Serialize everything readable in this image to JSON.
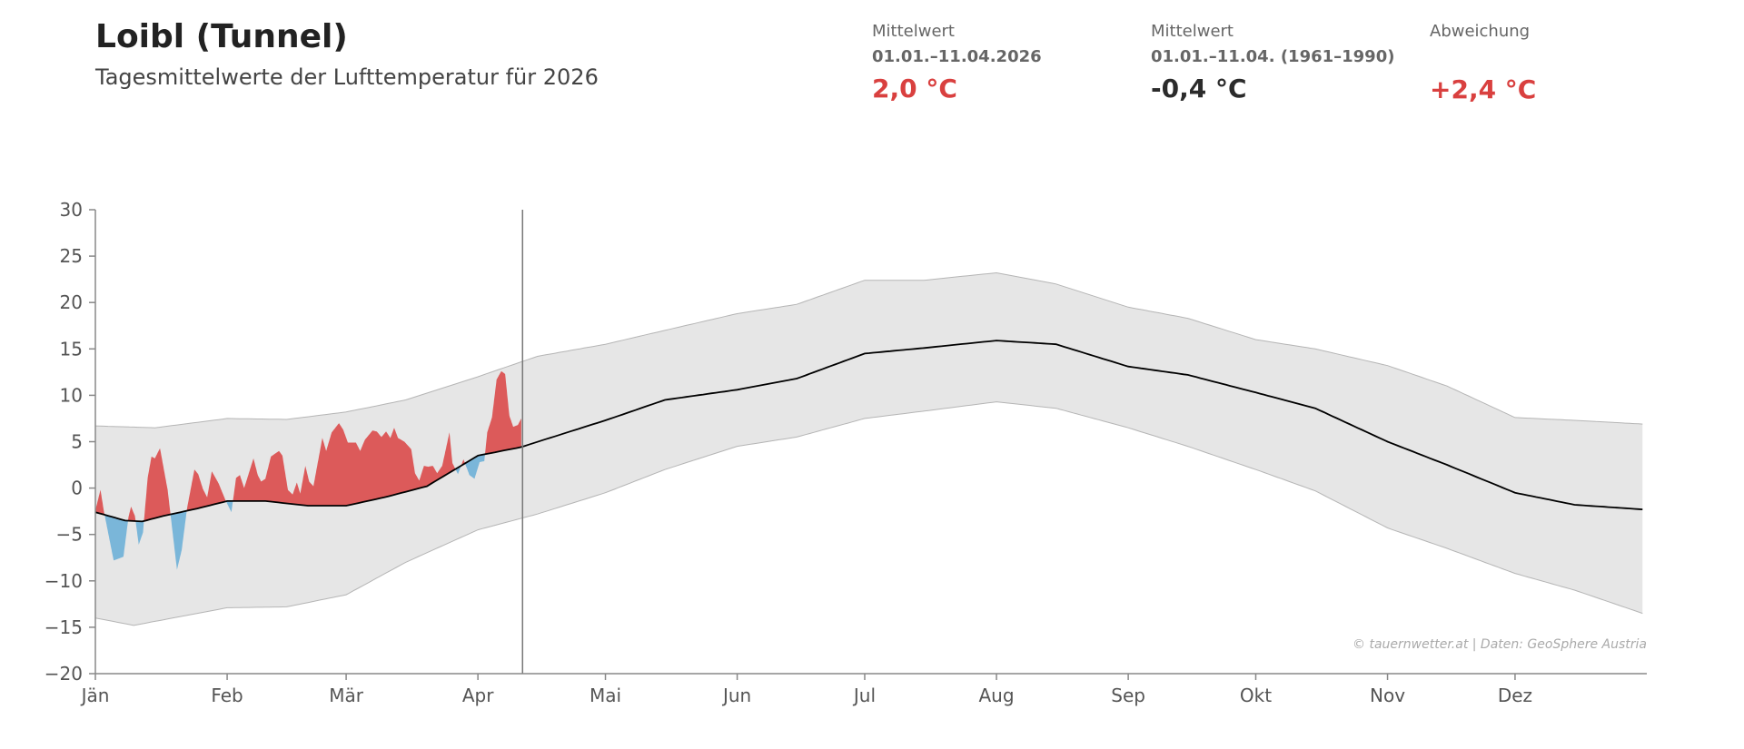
{
  "header": {
    "title": "Loibl (Tunnel)",
    "subtitle": "Tagesmittelwerte der Lufttemperatur für 2026"
  },
  "stats": [
    {
      "label": "Mittelwert",
      "period": "01.01.–11.04.2026",
      "value": "2,0 °C",
      "color": "#d9403f"
    },
    {
      "label": "Mittelwert",
      "period": "01.01.–11.04. (1961–1990)",
      "value": "-0,4 °C",
      "color": "#2b2b2b"
    },
    {
      "label": "Abweichung",
      "period": "",
      "value": "+2,4 °C",
      "color": "#d9403f"
    }
  ],
  "chart_data": {
    "type": "area",
    "title": "Tagesmittelwerte der Lufttemperatur für 2026",
    "xlabel": "",
    "ylabel": "",
    "ylim": [
      -20,
      30
    ],
    "yticks": [
      "30",
      "25",
      "20",
      "15",
      "10",
      "5",
      "0",
      "−5",
      "−10",
      "−15",
      "−20"
    ],
    "ytick_values": [
      30,
      25,
      20,
      15,
      10,
      5,
      0,
      -5,
      -10,
      -15,
      -20
    ],
    "xlim_days": [
      0,
      365
    ],
    "months": [
      "Jän",
      "Feb",
      "Mär",
      "Apr",
      "Mai",
      "Jun",
      "Jul",
      "Aug",
      "Sep",
      "Okt",
      "Nov",
      "Dez"
    ],
    "month_start_days": [
      0,
      31,
      59,
      90,
      120,
      151,
      181,
      212,
      243,
      273,
      304,
      334
    ],
    "current_day": 100.5,
    "colors": {
      "above": "#dc5a5a",
      "below": "#7ab6d9",
      "band": "#e6e6e6",
      "band_edge": "#b5b5b5",
      "mean": "#000000",
      "axis": "#888888"
    },
    "climate_mean": {
      "days": [
        0,
        7,
        11,
        16,
        24,
        31,
        40,
        50,
        59,
        68,
        78,
        90,
        100,
        120,
        134,
        151,
        165,
        181,
        195,
        212,
        226,
        243,
        257,
        273,
        287,
        304,
        318,
        334,
        348,
        364
      ],
      "values": [
        -2.6,
        -3.5,
        -3.6,
        -3.0,
        -2.2,
        -1.4,
        -1.4,
        -1.9,
        -1.9,
        -1.0,
        0.2,
        3.5,
        4.4,
        7.3,
        9.5,
        10.6,
        11.8,
        14.5,
        15.1,
        15.9,
        15.5,
        13.1,
        12.2,
        10.3,
        8.6,
        5.0,
        2.5,
        -0.5,
        -1.8,
        -2.3
      ]
    },
    "band_upper": {
      "days": [
        0,
        14,
        31,
        45,
        59,
        73,
        90,
        104,
        120,
        134,
        151,
        165,
        181,
        195,
        212,
        226,
        243,
        257,
        273,
        287,
        304,
        318,
        334,
        348,
        364
      ],
      "values": [
        6.7,
        6.5,
        7.5,
        7.4,
        8.2,
        9.5,
        12.0,
        14.2,
        15.5,
        17.0,
        18.8,
        19.8,
        22.4,
        22.4,
        23.2,
        22.0,
        19.5,
        18.3,
        16.0,
        15.0,
        13.2,
        11.0,
        7.6,
        7.3,
        6.9
      ]
    },
    "band_lower": {
      "days": [
        0,
        9,
        31,
        45,
        59,
        73,
        90,
        104,
        120,
        134,
        151,
        165,
        181,
        195,
        212,
        226,
        243,
        257,
        273,
        287,
        304,
        318,
        334,
        348,
        364
      ],
      "values": [
        -14.0,
        -14.8,
        -12.9,
        -12.8,
        -11.5,
        -8.0,
        -4.5,
        -2.8,
        -0.5,
        2.0,
        4.5,
        5.5,
        7.5,
        8.3,
        9.3,
        8.6,
        6.5,
        4.5,
        2.0,
        -0.3,
        -4.3,
        -6.5,
        -9.2,
        -11.0,
        -13.5
      ]
    },
    "series_2026": {
      "days": [
        0,
        1.2,
        2,
        4.3,
        5.5,
        6.6,
        7.8,
        8.4,
        9.3,
        10.2,
        11.2,
        12.3,
        13.2,
        14,
        15.2,
        17,
        19.2,
        20.3,
        21.6,
        23.3,
        24.2,
        25.3,
        26.3,
        27.4,
        29,
        30.6,
        32,
        33.1,
        34,
        35,
        37.2,
        38.2,
        39,
        40,
        41.3,
        43.2,
        44,
        45.3,
        46.4,
        47.4,
        48.2,
        49.4,
        50.3,
        51.3,
        53.4,
        54.3,
        55.6,
        57.3,
        58.3,
        59.4,
        61.3,
        62.3,
        63.4,
        65.2,
        66.2,
        67.3,
        68.4,
        69.4,
        70.3,
        71.2,
        72.7,
        74.3,
        75.2,
        76.2,
        77.3,
        78.3,
        79.4,
        80.4,
        81.6,
        83.3,
        84,
        85.3,
        86.6,
        88,
        89.2,
        90.4,
        91.5,
        92.2,
        93.3,
        94.4,
        95.5,
        96.4,
        97.4,
        98.3,
        99.4,
        100.2
      ],
      "values": [
        -2.4,
        -0.2,
        -2.5,
        -7.8,
        -7.6,
        -7.4,
        -3.1,
        -2.0,
        -3.0,
        -6.1,
        -4.8,
        1.1,
        3.4,
        3.2,
        4.3,
        -0.2,
        -8.8,
        -6.7,
        -2.1,
        2.0,
        1.5,
        -0.1,
        -1.0,
        1.8,
        0.5,
        -1.3,
        -2.6,
        1.1,
        1.4,
        0.0,
        3.2,
        1.4,
        0.7,
        1.0,
        3.4,
        4.0,
        3.5,
        -0.2,
        -0.7,
        0.6,
        -0.6,
        2.4,
        0.7,
        0.2,
        5.4,
        4.0,
        6.0,
        7.0,
        6.3,
        4.9,
        4.9,
        4.0,
        5.2,
        6.2,
        6.1,
        5.5,
        6.1,
        5.4,
        6.5,
        5.4,
        5.0,
        4.2,
        1.6,
        0.8,
        2.4,
        2.3,
        2.4,
        1.6,
        2.4,
        6.0,
        2.7,
        1.5,
        3.1,
        1.4,
        1.0,
        2.8,
        2.9,
        6.0,
        7.6,
        11.7,
        12.6,
        12.3,
        7.8,
        6.6,
        6.8,
        7.5
      ]
    },
    "annotation": "© tauernwetter.at | Daten: GeoSphere Austria"
  }
}
